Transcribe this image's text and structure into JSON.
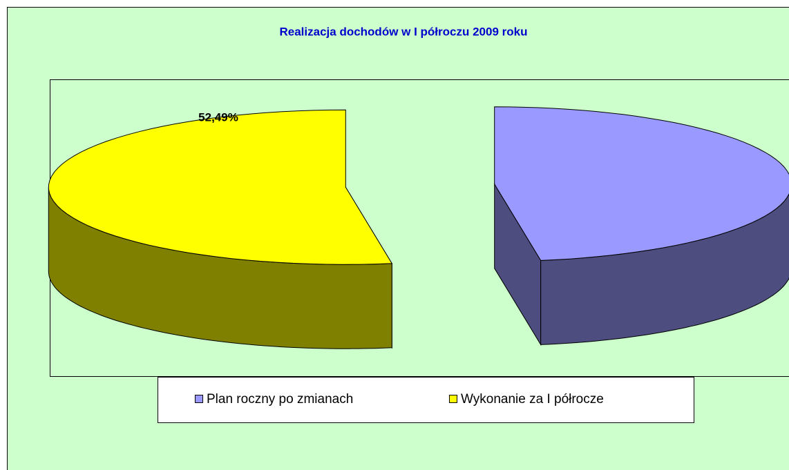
{
  "chart_data": {
    "type": "pie3d",
    "title": "Realizacja dochodów w I półroczu 2009 roku",
    "categories": [
      "Plan roczny po zmianach",
      "Wykonanie za I półrocze"
    ],
    "values": [
      47.51,
      52.49
    ],
    "value_labels": [
      null,
      "52,49%"
    ],
    "series": [
      {
        "name": "Plan roczny po zmianach",
        "color": "#9999ff"
      },
      {
        "name": "Wykonanie za I półrocze",
        "color": "#ffff00"
      }
    ],
    "legend": "bottom"
  }
}
